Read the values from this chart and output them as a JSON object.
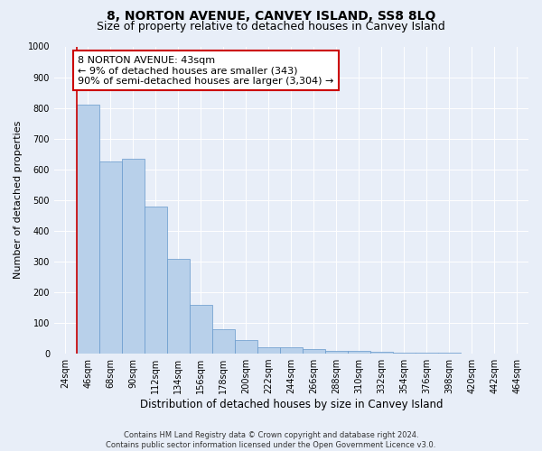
{
  "title": "8, NORTON AVENUE, CANVEY ISLAND, SS8 8LQ",
  "subtitle": "Size of property relative to detached houses in Canvey Island",
  "xlabel": "Distribution of detached houses by size in Canvey Island",
  "ylabel": "Number of detached properties",
  "footer_line1": "Contains HM Land Registry data © Crown copyright and database right 2024.",
  "footer_line2": "Contains public sector information licensed under the Open Government Licence v3.0.",
  "categories": [
    "24sqm",
    "46sqm",
    "68sqm",
    "90sqm",
    "112sqm",
    "134sqm",
    "156sqm",
    "178sqm",
    "200sqm",
    "222sqm",
    "244sqm",
    "266sqm",
    "288sqm",
    "310sqm",
    "332sqm",
    "354sqm",
    "376sqm",
    "398sqm",
    "420sqm",
    "442sqm",
    "464sqm"
  ],
  "values": [
    0,
    810,
    625,
    635,
    480,
    310,
    160,
    80,
    43,
    22,
    22,
    15,
    10,
    8,
    5,
    3,
    2,
    2,
    1,
    1,
    1
  ],
  "bar_color": "#b8d0ea",
  "bar_edge_color": "#6699cc",
  "annotation_line1": "8 NORTON AVENUE: 43sqm",
  "annotation_line2": "← 9% of detached houses are smaller (343)",
  "annotation_line3": "90% of semi-detached houses are larger (3,304) →",
  "red_line_x": 0.5,
  "ylim": [
    0,
    1000
  ],
  "yticks": [
    0,
    100,
    200,
    300,
    400,
    500,
    600,
    700,
    800,
    900,
    1000
  ],
  "bg_color": "#e8eef8",
  "plot_bg_color": "#e8eef8",
  "annotation_box_facecolor": "#ffffff",
  "annotation_box_edgecolor": "#cc0000",
  "red_line_color": "#cc0000",
  "title_fontsize": 10,
  "subtitle_fontsize": 9,
  "annot_fontsize": 8,
  "tick_fontsize": 7,
  "ylabel_fontsize": 8,
  "xlabel_fontsize": 8.5,
  "footer_fontsize": 6
}
